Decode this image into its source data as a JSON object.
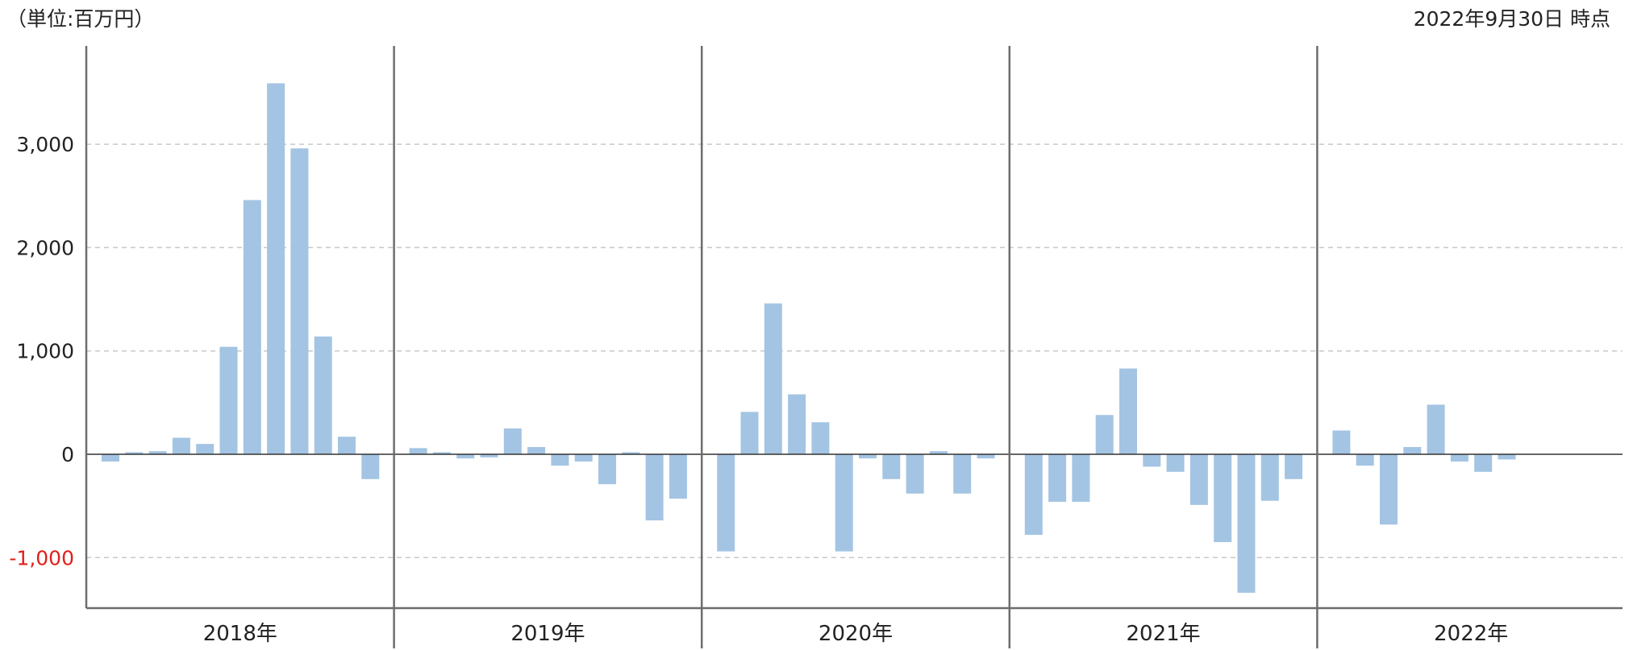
{
  "header": {
    "unit_label": "（単位:百万円）",
    "as_of_label": "2022年9月30日 時点"
  },
  "colors": {
    "bar": "#a4c4e3",
    "grid": "#c8c8c8",
    "axis": "#6d6d6d",
    "zero_line": "#333333",
    "negative_tick": "#e0201b",
    "text": "#222222"
  },
  "chart_data": {
    "type": "bar",
    "ylim": [
      -1450,
      3600
    ],
    "y_ticks": [
      {
        "value": -1000,
        "label": "-1,000",
        "negative": true
      },
      {
        "value": 0,
        "label": "0",
        "negative": false
      },
      {
        "value": 1000,
        "label": "1,000",
        "negative": false
      },
      {
        "value": 2000,
        "label": "2,000",
        "negative": false
      },
      {
        "value": 3000,
        "label": "3,000",
        "negative": false
      }
    ],
    "grid": true,
    "groups": [
      {
        "label": "2018年",
        "values": [
          -70,
          20,
          30,
          160,
          100,
          1040,
          2460,
          3590,
          2960,
          1140,
          170,
          -240
        ]
      },
      {
        "label": "2019年",
        "values": [
          60,
          20,
          -40,
          -30,
          250,
          70,
          -110,
          -70,
          -290,
          20,
          -640,
          -430
        ]
      },
      {
        "label": "2020年",
        "values": [
          -940,
          410,
          1460,
          580,
          310,
          -940,
          -40,
          -240,
          -380,
          30,
          -380,
          -40
        ]
      },
      {
        "label": "2021年",
        "values": [
          -780,
          -460,
          -460,
          380,
          830,
          -120,
          -170,
          -490,
          -850,
          -1340,
          -450,
          -240
        ]
      },
      {
        "label": "2022年",
        "values": [
          230,
          -110,
          -680,
          70,
          480,
          -70,
          -170,
          -50
        ]
      }
    ]
  }
}
